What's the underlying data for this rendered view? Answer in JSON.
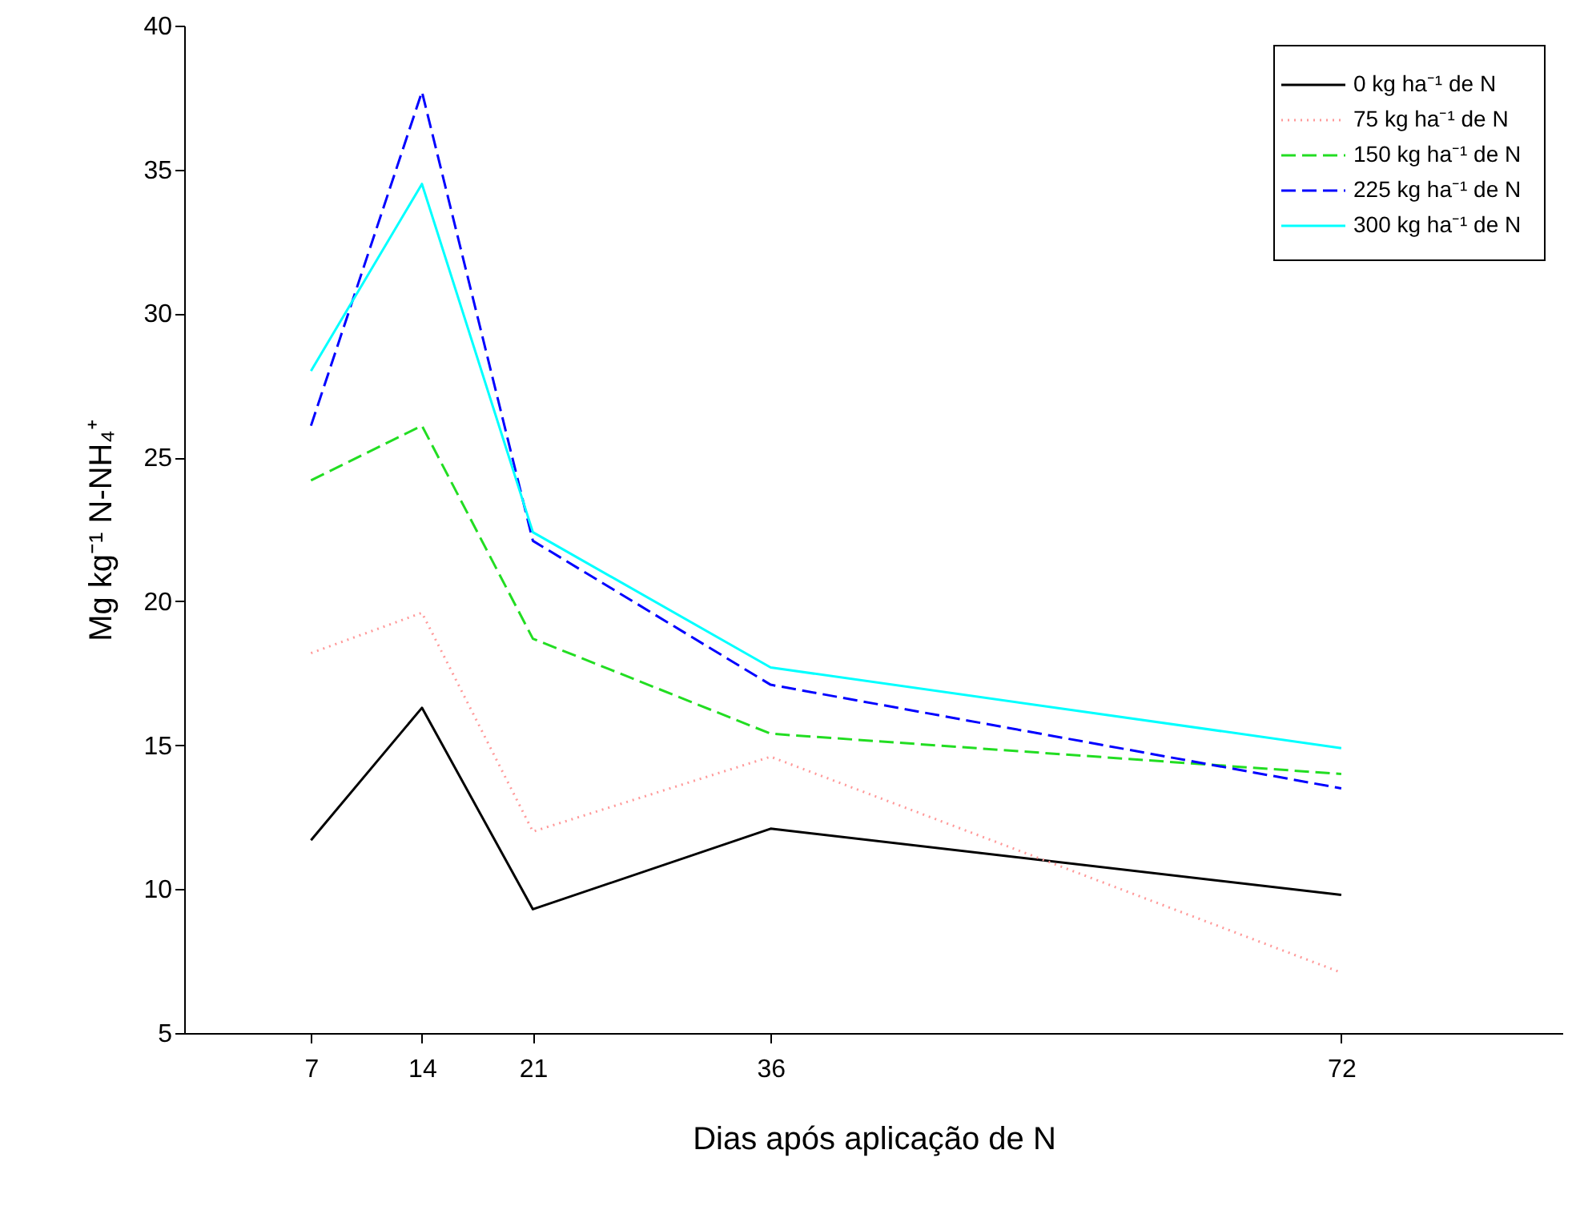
{
  "chart_data": {
    "type": "line",
    "xlabel": "Dias após aplicação de N",
    "ylabel": "Mg kg⁻¹ N-NH₄⁺",
    "x": [
      7,
      14,
      21,
      36,
      72
    ],
    "xlim": [
      -1,
      86
    ],
    "xticks": [
      7,
      14,
      21,
      36,
      72
    ],
    "ylim": [
      5,
      40
    ],
    "yticks": [
      5,
      10,
      15,
      20,
      25,
      30,
      35,
      40
    ],
    "grid": false,
    "legend": "top right",
    "marker": "none",
    "series": [
      {
        "name": "0 kg ha⁻¹ de N",
        "color": "#000000",
        "line_style": "solid",
        "values": [
          11.7,
          16.3,
          9.3,
          12.1,
          9.8
        ]
      },
      {
        "name": "75 kg ha⁻¹ de N",
        "color": "#ff9999",
        "line_style": "dotted",
        "values": [
          18.2,
          19.6,
          12.0,
          14.6,
          7.1
        ]
      },
      {
        "name": "150 kg ha⁻¹ de N",
        "color": "#22dd22",
        "line_style": "dashed",
        "values": [
          24.2,
          26.1,
          18.7,
          15.4,
          14.0
        ]
      },
      {
        "name": "225 kg ha⁻¹ de N",
        "color": "#0000ff",
        "line_style": "dashed",
        "values": [
          26.1,
          37.7,
          22.1,
          17.1,
          13.5
        ]
      },
      {
        "name": "300 kg ha⁻¹ de N",
        "color": "#00ffff",
        "line_style": "solid",
        "values": [
          28.0,
          34.5,
          22.4,
          17.7,
          14.9
        ]
      }
    ]
  }
}
